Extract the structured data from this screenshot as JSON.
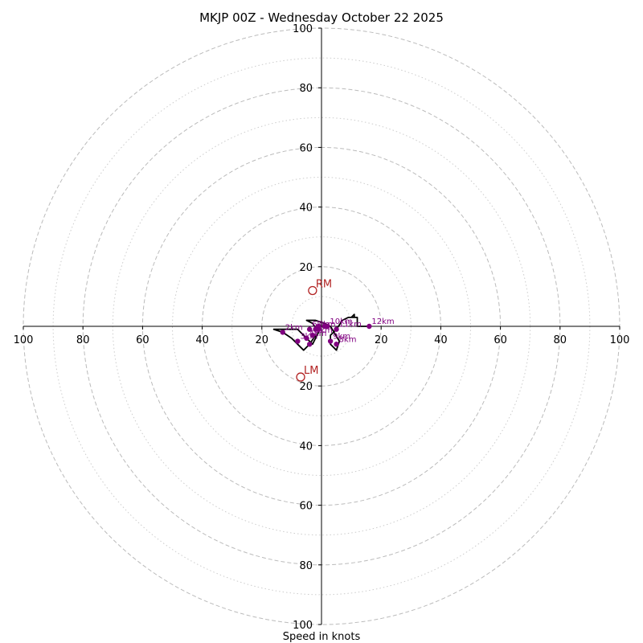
{
  "chart_data": {
    "type": "hodograph",
    "title": "MKJP 00Z - Wednesday October 22 2025",
    "xlabel": "Speed in knots",
    "axis_range": [
      -100,
      100
    ],
    "rings_major": [
      20,
      40,
      60,
      80,
      100
    ],
    "rings_minor": [
      10,
      30,
      50,
      70,
      90
    ],
    "tick_labels": [
      "100",
      "80",
      "60",
      "40",
      "20",
      "20",
      "40",
      "60",
      "80",
      "100"
    ],
    "tick_values": [
      -100,
      -80,
      -60,
      -40,
      -20,
      20,
      40,
      60,
      80,
      100
    ],
    "trace": [
      [
        -2,
        -3
      ],
      [
        -4,
        -6
      ],
      [
        -6,
        -8
      ],
      [
        -10,
        -4
      ],
      [
        -13,
        -2
      ],
      [
        -16,
        -1
      ],
      [
        -8,
        -1
      ],
      [
        -5,
        -4
      ],
      [
        -3,
        -6
      ],
      [
        -1,
        -2
      ],
      [
        -3,
        1
      ],
      [
        -5,
        2
      ],
      [
        -2,
        2
      ],
      [
        1,
        1
      ],
      [
        3,
        0
      ],
      [
        6,
        -5
      ],
      [
        5,
        -8
      ],
      [
        3,
        -6
      ],
      [
        3,
        -3
      ],
      [
        5,
        -1
      ],
      [
        7,
        2
      ],
      [
        9,
        3
      ],
      [
        11,
        3
      ],
      [
        11,
        4
      ],
      [
        10,
        3
      ],
      [
        12,
        3
      ],
      [
        12,
        0
      ],
      [
        16,
        0
      ]
    ],
    "height_markers": [
      {
        "label": "",
        "x": -4,
        "y": -6
      },
      {
        "label": "2km",
        "x": -13,
        "y": -2
      },
      {
        "label": "3km",
        "x": -8,
        "y": -5
      },
      {
        "label": "4km",
        "x": -5,
        "y": -4
      },
      {
        "label": "5km",
        "x": -3,
        "y": -3
      },
      {
        "label": "6km",
        "x": -4,
        "y": -1
      },
      {
        "label": "7km",
        "x": -2,
        "y": -1
      },
      {
        "label": "8km",
        "x": 5,
        "y": -6
      },
      {
        "label": "9km",
        "x": 3,
        "y": -5
      },
      {
        "label": "10km",
        "x": 2,
        "y": 0
      },
      {
        "label": "11km",
        "x": 5,
        "y": -1
      },
      {
        "label": "12km",
        "x": 16,
        "y": 0
      },
      {
        "label": "",
        "x": -1,
        "y": -1
      },
      {
        "label": "",
        "x": 1,
        "y": 0
      },
      {
        "label": "",
        "x": -1,
        "y": 0
      }
    ],
    "storm_motion": [
      {
        "label": "RM",
        "x": -3,
        "y": 12
      },
      {
        "label": "LM",
        "x": -7,
        "y": -17
      }
    ],
    "colors": {
      "trace": "#000000",
      "marker": "#800080",
      "motion": "#b22222",
      "ring": "#bbbbbb"
    }
  }
}
